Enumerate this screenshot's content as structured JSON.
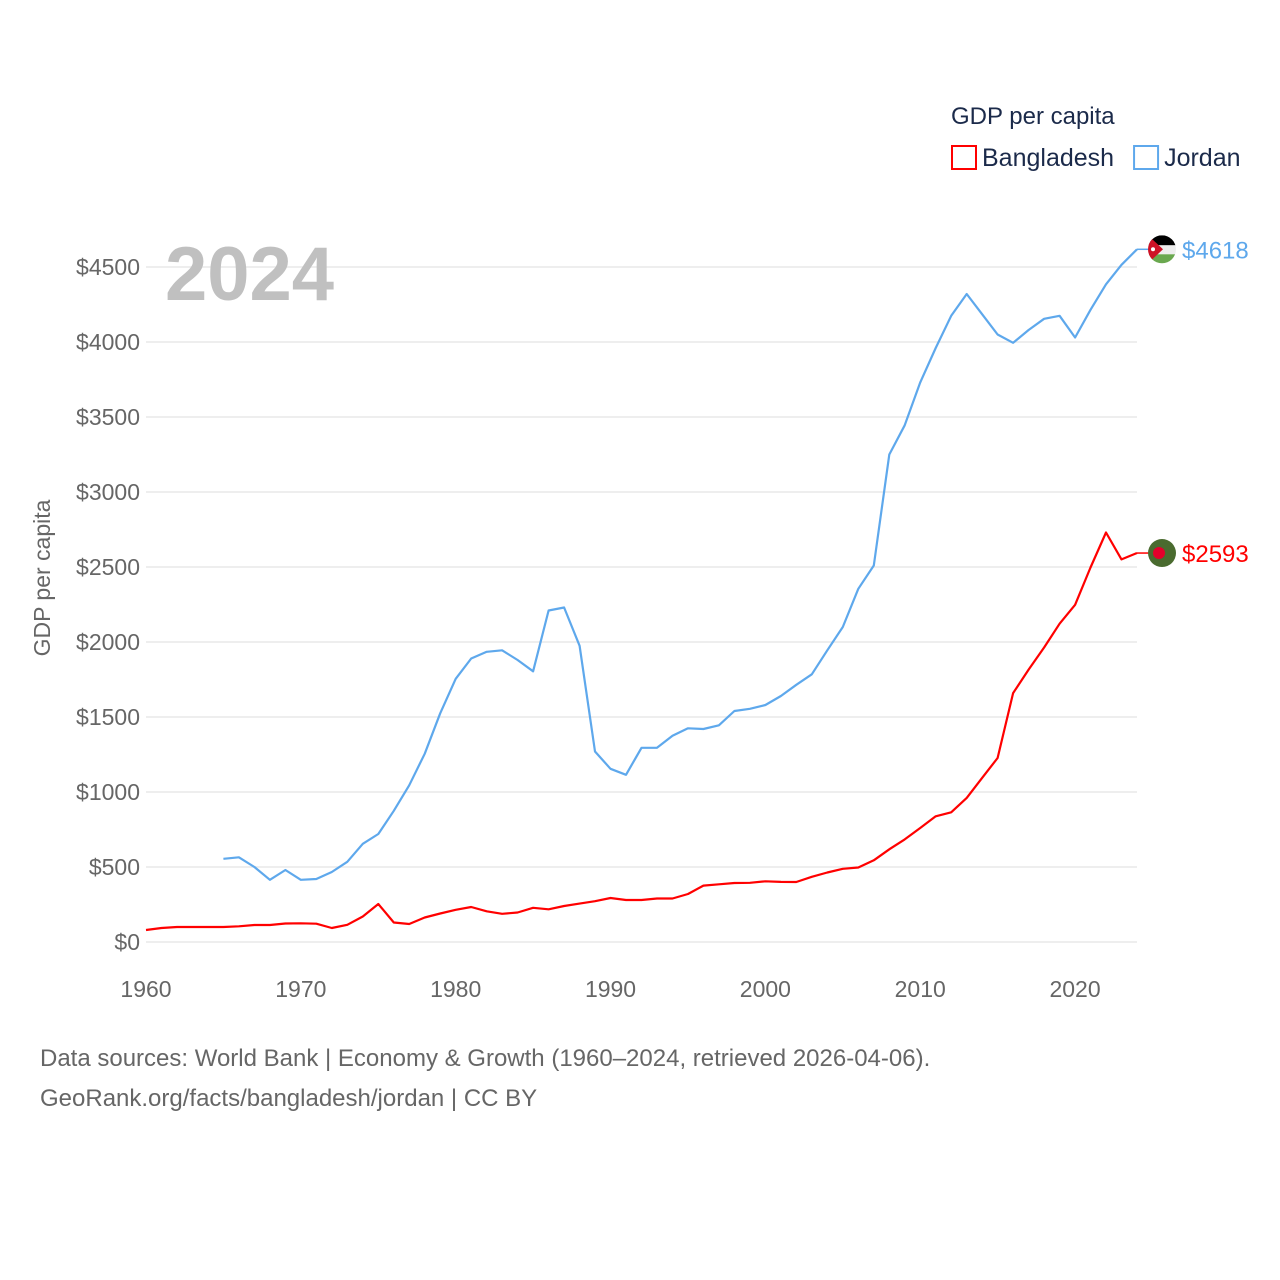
{
  "chart_data": {
    "type": "line",
    "title": "2024",
    "ylabel": "GDP per capita",
    "xlabel": "",
    "legend_title": "GDP per capita",
    "legend_placement": "top-right",
    "xlim": [
      1960,
      2024
    ],
    "ylim": [
      0,
      4500
    ],
    "xticks": [
      1960,
      1970,
      1980,
      1990,
      2000,
      2010,
      2020
    ],
    "yticks": [
      0,
      500,
      1000,
      1500,
      2000,
      2500,
      3000,
      3500,
      4000,
      4500
    ],
    "ytick_labels": [
      "$0",
      "$500",
      "$1000",
      "$1500",
      "$2000",
      "$2500",
      "$3000",
      "$3500",
      "$4000",
      "$4500"
    ],
    "grid": true,
    "series": [
      {
        "name": "Bangladesh",
        "color": "#ff0000",
        "end_label": "$2593",
        "start_year": 1960,
        "values": [
          80,
          93,
          100,
          100,
          100,
          100,
          105,
          113,
          113,
          123,
          125,
          122,
          93,
          115,
          170,
          253,
          130,
          120,
          163,
          190,
          215,
          233,
          205,
          188,
          197,
          228,
          218,
          240,
          256,
          272,
          293,
          280,
          280,
          290,
          290,
          320,
          376,
          385,
          393,
          395,
          405,
          401,
          400,
          435,
          463,
          488,
          497,
          545,
          618,
          684,
          760,
          838,
          865,
          961,
          1095,
          1227,
          1659,
          1816,
          1963,
          2122,
          2248,
          2497,
          2730,
          2551,
          2593
        ]
      },
      {
        "name": "Jordan",
        "color": "#5ea8ec",
        "end_label": "$4618",
        "start_year": 1965,
        "values": [
          555,
          565,
          500,
          415,
          480,
          415,
          420,
          467,
          535,
          655,
          720,
          875,
          1045,
          1255,
          1525,
          1755,
          1890,
          1935,
          1945,
          1880,
          1805,
          2210,
          2230,
          1975,
          1270,
          1155,
          1115,
          1295,
          1295,
          1375,
          1425,
          1420,
          1445,
          1540,
          1555,
          1580,
          1640,
          1715,
          1785,
          1945,
          2100,
          2355,
          2510,
          3250,
          3445,
          3730,
          3960,
          4175,
          4320,
          4185,
          4050,
          3995,
          4080,
          4155,
          4175,
          4030,
          4215,
          4385,
          4515,
          4618
        ]
      }
    ]
  },
  "footer": {
    "line1": "Data sources: World Bank | Economy & Growth (1960–2024, retrieved 2026-04-06).",
    "line2": "GeoRank.org/facts/bangladesh/jordan | CC BY"
  }
}
